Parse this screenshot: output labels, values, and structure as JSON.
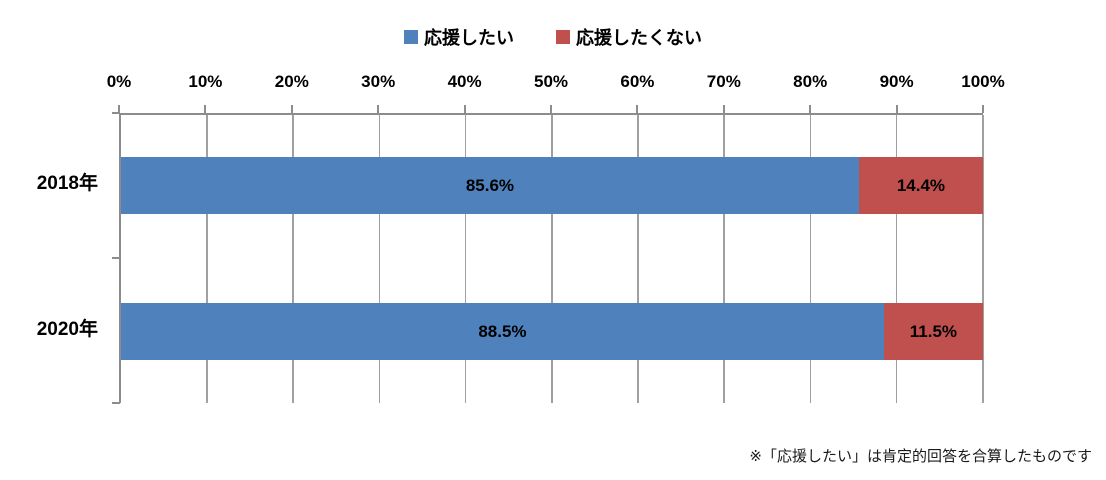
{
  "chart_data": {
    "type": "bar",
    "orientation": "horizontal",
    "stacked": true,
    "grid": true,
    "legend_position": "top",
    "categories": [
      "2018年",
      "2020年"
    ],
    "series": [
      {
        "name": "応援したい",
        "color": "#4F81BD",
        "values": [
          85.6,
          88.5
        ],
        "labels": [
          "85.6%",
          "88.5%"
        ]
      },
      {
        "name": "応援したくない",
        "color": "#C0504D",
        "values": [
          14.4,
          11.5
        ],
        "labels": [
          "14.4%",
          "11.5%"
        ]
      }
    ],
    "x_axis": {
      "position": "top",
      "min": 0,
      "max": 100,
      "ticks": [
        "0%",
        "10%",
        "20%",
        "30%",
        "40%",
        "50%",
        "60%",
        "70%",
        "80%",
        "90%",
        "100%"
      ]
    },
    "footnote": "※「応援したい」は肯定的回答を合算したものです"
  }
}
